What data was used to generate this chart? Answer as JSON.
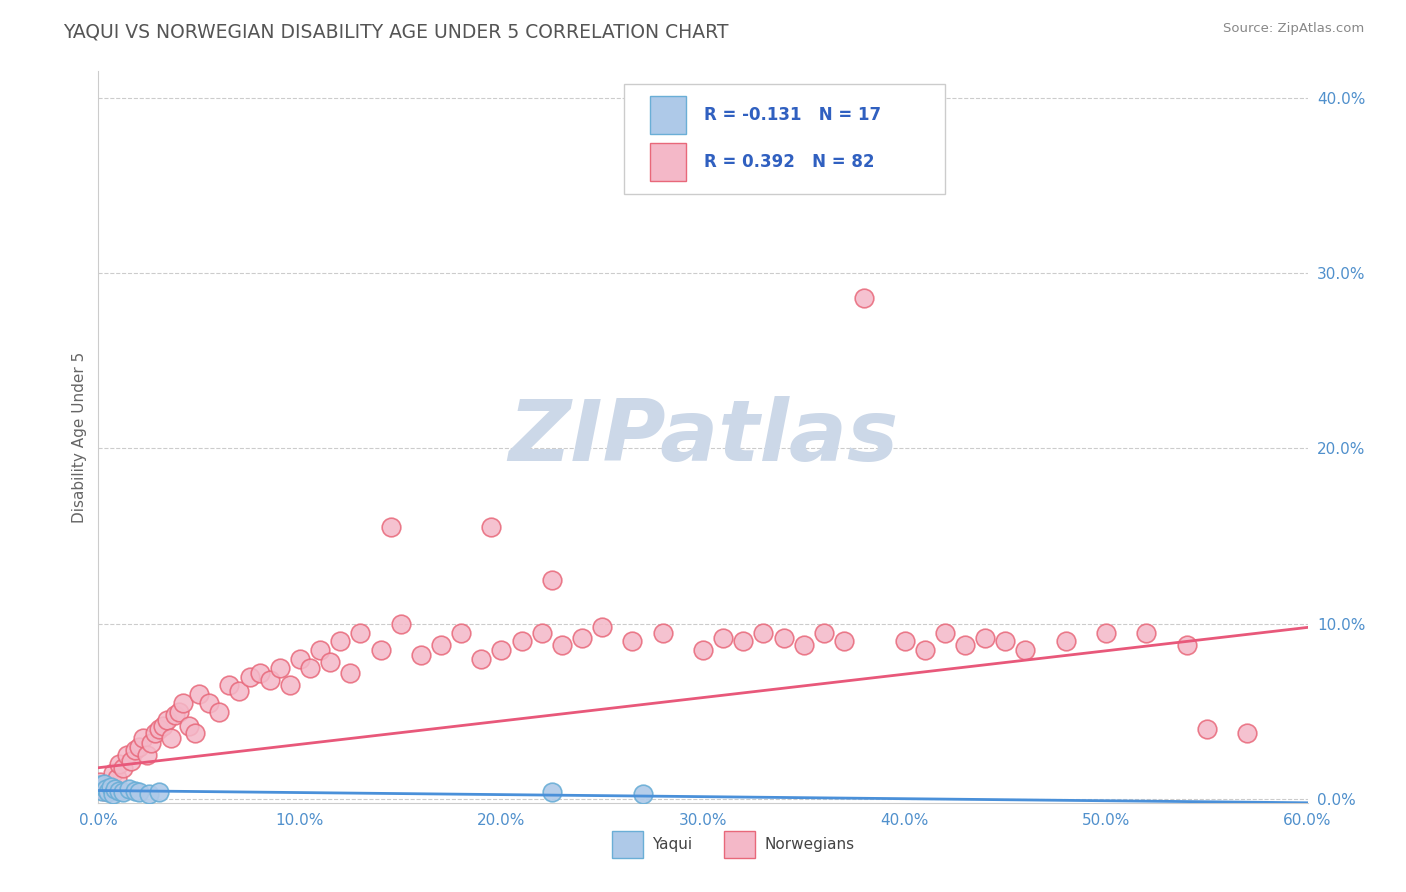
{
  "title": "YAQUI VS NORWEGIAN DISABILITY AGE UNDER 5 CORRELATION CHART",
  "source_text": "Source: ZipAtlas.com",
  "ylabel": "Disability Age Under 5",
  "xlim": [
    0.0,
    0.6
  ],
  "ylim": [
    -0.002,
    0.415
  ],
  "xticks": [
    0.0,
    0.1,
    0.2,
    0.3,
    0.4,
    0.5,
    0.6
  ],
  "xtick_labels": [
    "0.0%",
    "10.0%",
    "20.0%",
    "30.0%",
    "40.0%",
    "50.0%",
    "60.0%"
  ],
  "yticks": [
    0.0,
    0.1,
    0.2,
    0.3,
    0.4
  ],
  "ytick_labels": [
    "0.0%",
    "10.0%",
    "20.0%",
    "30.0%",
    "40.0%"
  ],
  "yaqui_face": "#aec9e8",
  "yaqui_edge": "#6aaed6",
  "norw_face": "#f4b8c8",
  "norw_edge": "#e8687a",
  "trend_yaqui": "#4a90d9",
  "trend_norw": "#e8587a",
  "bg": "#ffffff",
  "grid_color": "#cccccc",
  "title_color": "#555555",
  "watermark_color": "#ccd8e8",
  "tick_color": "#5090cc",
  "legend_text_color": "#3060c0",
  "legend1_text": "R = -0.131   N = 17",
  "legend2_text": "R = 0.392   N = 82",
  "norw_trend_start_y": 0.018,
  "norw_trend_end_y": 0.098,
  "yaqui_trend_start_y": 0.005,
  "yaqui_trend_end_y": -0.002
}
